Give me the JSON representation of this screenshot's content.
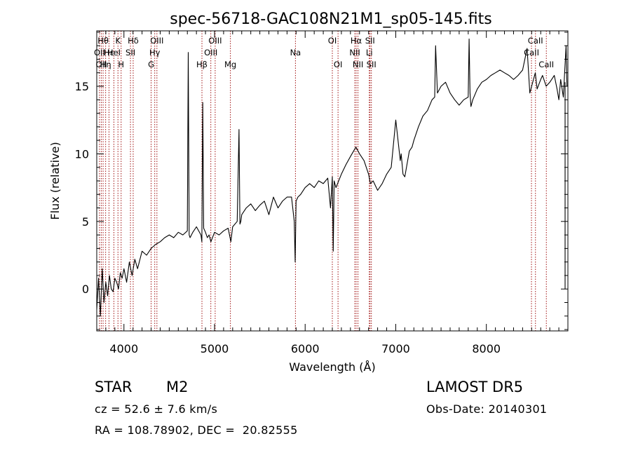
{
  "chart_data": {
    "type": "line",
    "title": "spec-56718-GAC108N21M1_sp05-145.fits",
    "xlabel": "Wavelength (Å)",
    "ylabel": "Flux (relative)",
    "xlim": [
      3700,
      8900
    ],
    "ylim": [
      -3.1,
      19.1
    ],
    "x_ticks": [
      4000,
      5000,
      6000,
      7000,
      8000
    ],
    "x_tick_labels": [
      "4000",
      "5000",
      "6000",
      "7000",
      "8000"
    ],
    "y_ticks": [
      0,
      5,
      10,
      15
    ],
    "y_tick_labels": [
      "0",
      "5",
      "10",
      "15"
    ],
    "grid": false,
    "series": [
      {
        "color": "#000000",
        "x": [
          3700,
          3720,
          3740,
          3760,
          3780,
          3800,
          3820,
          3840,
          3860,
          3880,
          3900,
          3920,
          3940,
          3960,
          3980,
          4000,
          4030,
          4060,
          4090,
          4120,
          4150,
          4200,
          4250,
          4300,
          4350,
          4400,
          4450,
          4500,
          4550,
          4600,
          4650,
          4700,
          4710,
          4720,
          4730,
          4760,
          4800,
          4850,
          4860,
          4870,
          4880,
          4900,
          4920,
          4940,
          4960,
          5000,
          5050,
          5100,
          5150,
          5180,
          5200,
          5250,
          5270,
          5280,
          5290,
          5300,
          5350,
          5400,
          5450,
          5500,
          5550,
          5600,
          5650,
          5700,
          5750,
          5800,
          5850,
          5880,
          5890,
          5900,
          5920,
          5950,
          6000,
          6050,
          6100,
          6150,
          6200,
          6250,
          6280,
          6300,
          6310,
          6320,
          6340,
          6400,
          6450,
          6500,
          6560,
          6600,
          6650,
          6700,
          6720,
          6750,
          6800,
          6850,
          6900,
          6950,
          7000,
          7050,
          7060,
          7080,
          7100,
          7150,
          7180,
          7200,
          7250,
          7300,
          7350,
          7400,
          7430,
          7440,
          7460,
          7500,
          7550,
          7600,
          7650,
          7700,
          7750,
          7800,
          7810,
          7820,
          7830,
          7850,
          7900,
          7950,
          8000,
          8050,
          8100,
          8150,
          8200,
          8250,
          8300,
          8350,
          8400,
          8450,
          8480,
          8500,
          8520,
          8540,
          8560,
          8600,
          8620,
          8660,
          8700,
          8750,
          8780,
          8800,
          8820,
          8850,
          8880,
          8890
        ],
        "values": [
          -1.5,
          0.8,
          -2.0,
          1.5,
          -1.0,
          0.5,
          -0.5,
          1.0,
          0.0,
          -0.2,
          0.8,
          0.5,
          0.0,
          1.2,
          0.8,
          1.5,
          0.5,
          2.0,
          1.0,
          2.2,
          1.5,
          2.8,
          2.5,
          3.0,
          3.3,
          3.5,
          3.8,
          4.0,
          3.8,
          4.2,
          4.0,
          4.3,
          17.5,
          4.0,
          3.8,
          4.2,
          4.6,
          4.0,
          3.5,
          13.8,
          4.5,
          4.2,
          3.8,
          4.0,
          3.5,
          4.2,
          4.0,
          4.3,
          4.5,
          3.5,
          4.6,
          5.0,
          11.8,
          4.8,
          5.0,
          5.5,
          6.0,
          6.3,
          5.8,
          6.2,
          6.5,
          5.5,
          6.8,
          6.0,
          6.5,
          6.8,
          6.8,
          5.0,
          2.0,
          6.5,
          6.8,
          7.0,
          7.5,
          7.8,
          7.5,
          8.0,
          7.8,
          8.2,
          6.0,
          8.3,
          2.8,
          8.0,
          7.5,
          8.5,
          9.2,
          9.8,
          10.5,
          10.0,
          9.5,
          8.5,
          7.8,
          8.0,
          7.3,
          7.8,
          8.5,
          9.0,
          12.5,
          9.5,
          10.0,
          8.5,
          8.3,
          10.2,
          10.5,
          11.0,
          12.0,
          12.8,
          13.2,
          14.0,
          14.2,
          18.0,
          14.5,
          15.0,
          15.3,
          14.5,
          14.0,
          13.6,
          14.0,
          14.2,
          18.5,
          14.5,
          13.5,
          14.0,
          14.8,
          15.3,
          15.5,
          15.8,
          16.0,
          16.2,
          16.0,
          15.8,
          15.5,
          15.8,
          16.2,
          17.8,
          14.5,
          15.0,
          15.5,
          16.0,
          14.8,
          15.5,
          15.8,
          15.0,
          15.3,
          15.8,
          14.8,
          14.0,
          15.5,
          14.2,
          18.0,
          15.0
        ],
        "spikes": [
          {
            "x": 8900,
            "values": [
              0.0,
              15.3
            ]
          }
        ]
      }
    ],
    "lines": [
      {
        "x": 3730,
        "label": "OII",
        "row": 2
      },
      {
        "x": 3750,
        "label": "OII",
        "row": 3
      },
      {
        "x": 3770,
        "label": "Hθ",
        "row": 1
      },
      {
        "x": 3798,
        "label": "Hη",
        "row": 3
      },
      {
        "x": 3835,
        "label": "Hε",
        "row": 2
      },
      {
        "x": 3889,
        "label": "HeI",
        "row": 2
      },
      {
        "x": 3934,
        "label": "K",
        "row": 1
      },
      {
        "x": 3969,
        "label": "H",
        "row": 3
      },
      {
        "x": 4072,
        "label": "SII",
        "row": 2
      },
      {
        "x": 4102,
        "label": "Hδ",
        "row": 1
      },
      {
        "x": 4300,
        "label": "G",
        "row": 3
      },
      {
        "x": 4340,
        "label": "Hγ",
        "row": 2
      },
      {
        "x": 4364,
        "label": "OIII",
        "row": 1
      },
      {
        "x": 4861,
        "label": "Hβ",
        "row": 3
      },
      {
        "x": 4959,
        "label": "OIII",
        "row": 2
      },
      {
        "x": 5007,
        "label": "OIII",
        "row": 1
      },
      {
        "x": 5175,
        "label": "Mg",
        "row": 3
      },
      {
        "x": 5893,
        "label": "Na",
        "row": 2
      },
      {
        "x": 6300,
        "label": "OI",
        "row": 1
      },
      {
        "x": 6363,
        "label": "OI",
        "row": 3
      },
      {
        "x": 6548,
        "label": "NII",
        "row": 2
      },
      {
        "x": 6563,
        "label": "Hα",
        "row": 1
      },
      {
        "x": 6583,
        "label": "NII",
        "row": 3
      },
      {
        "x": 6708,
        "label": "Li",
        "row": 2
      },
      {
        "x": 6716,
        "label": "SII",
        "row": 1
      },
      {
        "x": 6731,
        "label": "SII",
        "row": 3
      },
      {
        "x": 8498,
        "label": "CaII",
        "row": 2
      },
      {
        "x": 8542,
        "label": "CaII",
        "row": 1
      },
      {
        "x": 8662,
        "label": "CaII",
        "row": 3
      }
    ]
  },
  "info": {
    "object_class": "STAR",
    "subclass": "M2",
    "redshift": "cz = 52.6 ± 7.6 km/s",
    "coords": "RA = 108.78902, DEC =  20.82555",
    "survey": "LAMOST DR5",
    "obs_date": "Obs-Date: 20140301"
  },
  "colors": {
    "spectrum": "#000000",
    "line_markers": "#a01010",
    "axis": "#000000",
    "background": "#ffffff"
  }
}
